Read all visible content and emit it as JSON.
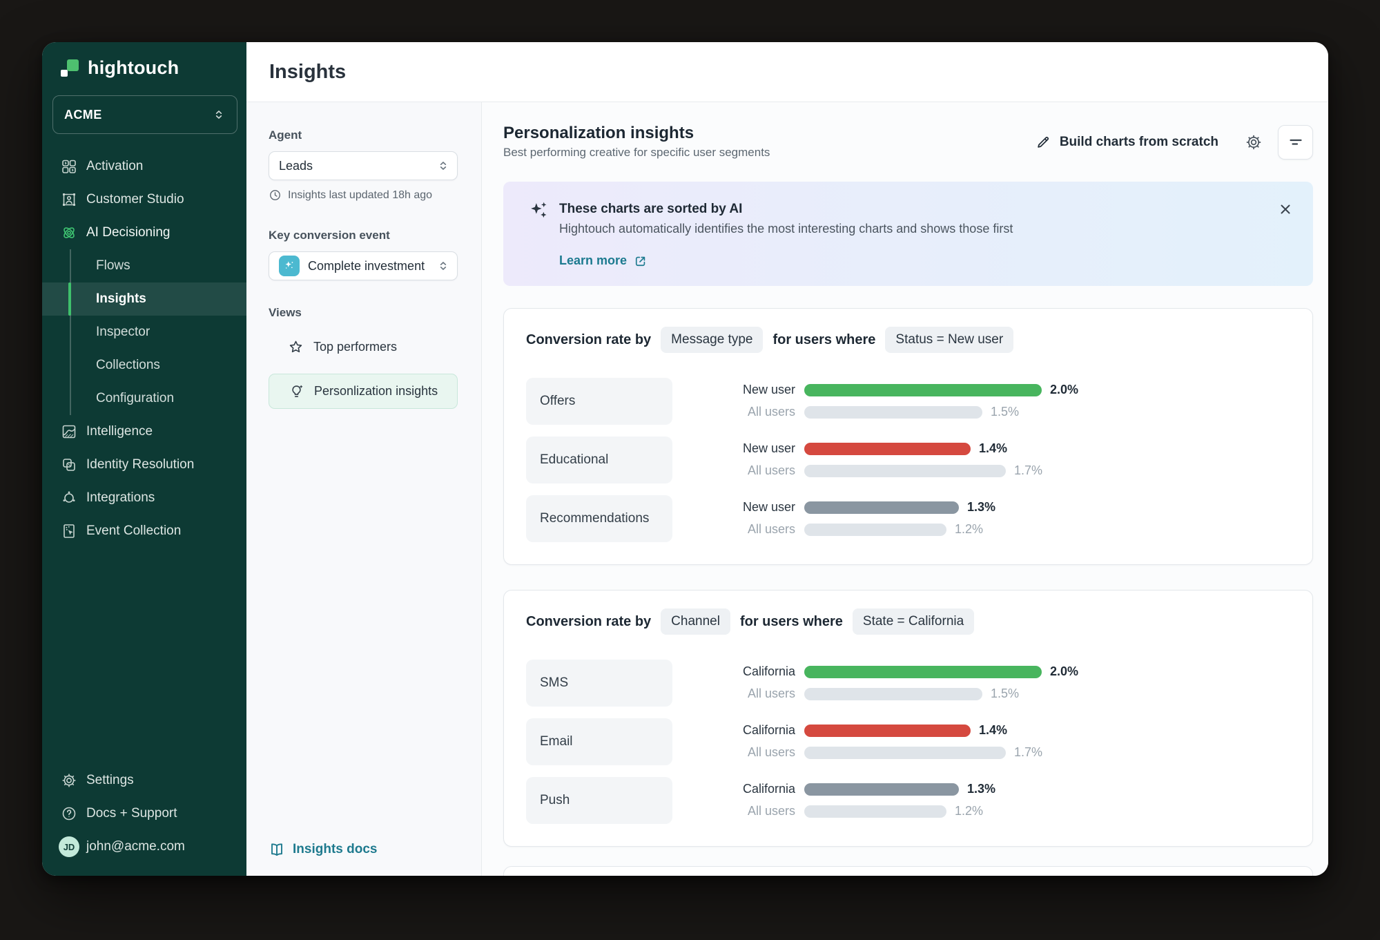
{
  "sidebar": {
    "logo_text": "hightouch",
    "workspace": "ACME",
    "items": [
      {
        "label": "Activation",
        "icon": "activation"
      },
      {
        "label": "Customer Studio",
        "icon": "customer-studio"
      },
      {
        "label": "AI Decisioning",
        "icon": "ai-decisioning",
        "accent": true
      },
      {
        "label": "Flows",
        "sub": true
      },
      {
        "label": "Insights",
        "sub": true,
        "active": true
      },
      {
        "label": "Inspector",
        "sub": true
      },
      {
        "label": "Collections",
        "sub": true
      },
      {
        "label": "Configuration",
        "sub": true
      },
      {
        "label": "Intelligence",
        "icon": "intelligence"
      },
      {
        "label": "Identity Resolution",
        "icon": "identity-resolution"
      },
      {
        "label": "Integrations",
        "icon": "integrations"
      },
      {
        "label": "Event Collection",
        "icon": "event-collection"
      }
    ],
    "footer_items": [
      {
        "label": "Settings",
        "icon": "gear"
      },
      {
        "label": "Docs + Support",
        "icon": "help"
      }
    ],
    "user_email": "john@acme.com",
    "avatar_initials": "JD"
  },
  "topbar": {
    "title": "Insights"
  },
  "panel": {
    "agent_label": "Agent",
    "agent_value": "Leads",
    "last_updated": "Insights last updated 18h ago",
    "key_event_label": "Key conversion event",
    "key_event_value": "Complete investment",
    "views_label": "Views",
    "views": [
      {
        "label": "Top performers",
        "icon": "star"
      },
      {
        "label": "Personlization insights",
        "icon": "lightbulb",
        "active": true
      }
    ],
    "docs_link": "Insights docs"
  },
  "main": {
    "heading": "Personalization insights",
    "subheading": "Best performing creative for specific user segments",
    "build_label": "Build charts from scratch",
    "banner": {
      "title": "These charts are sorted by AI",
      "body": "Hightouch automatically identifies the most interesting charts and shows those first",
      "link_label": "Learn more"
    }
  },
  "chart_data": [
    {
      "type": "bar",
      "title_prefix": "Conversion rate by",
      "dimension": "Message type",
      "filter_prefix": "for users where",
      "filter": "Status = New user",
      "unit": "%",
      "value_axis_max": 2.0,
      "rows": [
        {
          "category": "Offers",
          "series": [
            {
              "name": "New user",
              "value": 2.0,
              "label": "2.0%",
              "color": "#48b55e"
            },
            {
              "name": "All users",
              "value": 1.5,
              "label": "1.5%",
              "color": "#dfe4e9"
            }
          ]
        },
        {
          "category": "Educational",
          "series": [
            {
              "name": "New user",
              "value": 1.4,
              "label": "1.4%",
              "color": "#d5493f"
            },
            {
              "name": "All users",
              "value": 1.7,
              "label": "1.7%",
              "color": "#dfe4e9"
            }
          ]
        },
        {
          "category": "Recommendations",
          "series": [
            {
              "name": "New user",
              "value": 1.3,
              "label": "1.3%",
              "color": "#8a96a1"
            },
            {
              "name": "All users",
              "value": 1.2,
              "label": "1.2%",
              "color": "#dfe4e9"
            }
          ]
        }
      ]
    },
    {
      "type": "bar",
      "title_prefix": "Conversion rate by",
      "dimension": "Channel",
      "filter_prefix": "for users where",
      "filter": "State = California",
      "unit": "%",
      "value_axis_max": 2.0,
      "rows": [
        {
          "category": "SMS",
          "series": [
            {
              "name": "California",
              "value": 2.0,
              "label": "2.0%",
              "color": "#48b55e"
            },
            {
              "name": "All users",
              "value": 1.5,
              "label": "1.5%",
              "color": "#dfe4e9"
            }
          ]
        },
        {
          "category": "Email",
          "series": [
            {
              "name": "California",
              "value": 1.4,
              "label": "1.4%",
              "color": "#d5493f"
            },
            {
              "name": "All users",
              "value": 1.7,
              "label": "1.7%",
              "color": "#dfe4e9"
            }
          ]
        },
        {
          "category": "Push",
          "series": [
            {
              "name": "California",
              "value": 1.3,
              "label": "1.3%",
              "color": "#8a96a1"
            },
            {
              "name": "All users",
              "value": 1.2,
              "label": "1.2%",
              "color": "#dfe4e9"
            }
          ]
        }
      ]
    }
  ]
}
